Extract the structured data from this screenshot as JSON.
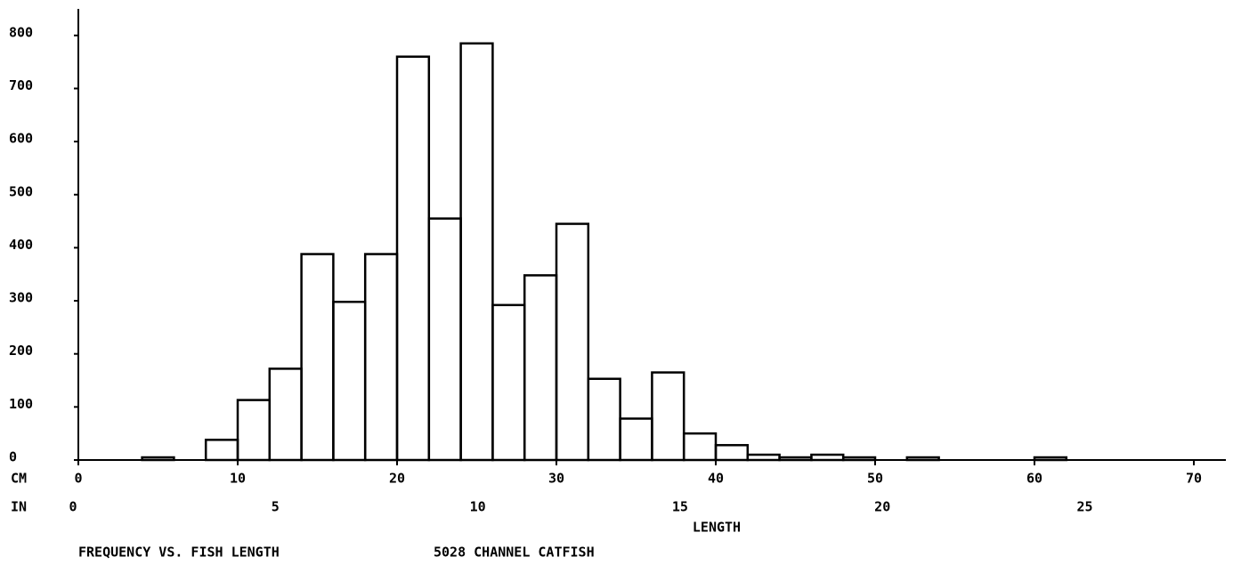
{
  "chart_data": {
    "type": "histogram",
    "title": "FREQUENCY VS. FISH LENGTH",
    "subtitle": "5028 CHANNEL CATFISH",
    "x_label": "LENGTH",
    "x_unit_label": "CM",
    "x2_unit_label": "IN",
    "bins": [
      4,
      6,
      8,
      10,
      12,
      14,
      16,
      18,
      20,
      22,
      24,
      26,
      28,
      30,
      32,
      34,
      36,
      38,
      40,
      42,
      44,
      46,
      48,
      50,
      52,
      54,
      56,
      58,
      60,
      62
    ],
    "values": [
      5,
      0,
      38,
      113,
      172,
      388,
      298,
      388,
      760,
      455,
      785,
      292,
      348,
      445,
      153,
      78,
      165,
      50,
      28,
      10,
      5,
      10,
      5,
      0,
      5,
      0,
      0,
      0,
      5
    ],
    "color": "#000000",
    "xlim": [
      0,
      72
    ],
    "xticks": [
      0,
      10,
      20,
      30,
      40,
      50,
      60,
      70
    ],
    "x2lim": [
      0,
      28.35
    ],
    "x2ticks": [
      0,
      5,
      10,
      15,
      20,
      25
    ],
    "ylim": [
      0,
      850
    ],
    "yticks": [
      0,
      100,
      200,
      300,
      400,
      500,
      600,
      700,
      800
    ]
  }
}
